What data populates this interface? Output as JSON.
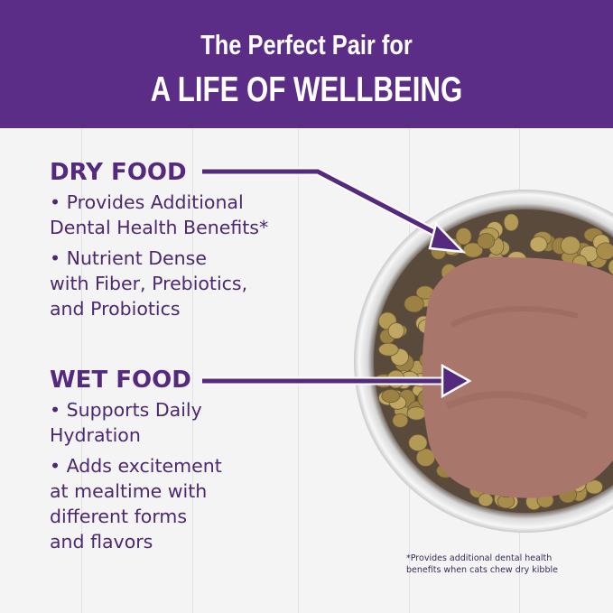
{
  "banner": {
    "line1": "The Perfect Pair for",
    "line2": "A LIFE OF WELLBEING"
  },
  "dry": {
    "heading": "DRY FOOD",
    "bullets": [
      "• Provides Additional",
      "Dental Health Benefits*",
      "• Nutrient Dense",
      "with Fiber, Prebiotics,",
      "and Probiotics"
    ]
  },
  "wet": {
    "heading": "WET FOOD",
    "bullets": [
      "• Supports Daily",
      "Hydration",
      "• Adds excitement",
      "at mealtime with",
      "different forms",
      "and flavors"
    ]
  },
  "footnote": {
    "line1": "*Provides additional dental health",
    "line2": "benefits when cats chew dry kibble"
  },
  "colors": {
    "banner": "#5b2d87",
    "text": "#4b2870",
    "arrow": "#55297e"
  }
}
